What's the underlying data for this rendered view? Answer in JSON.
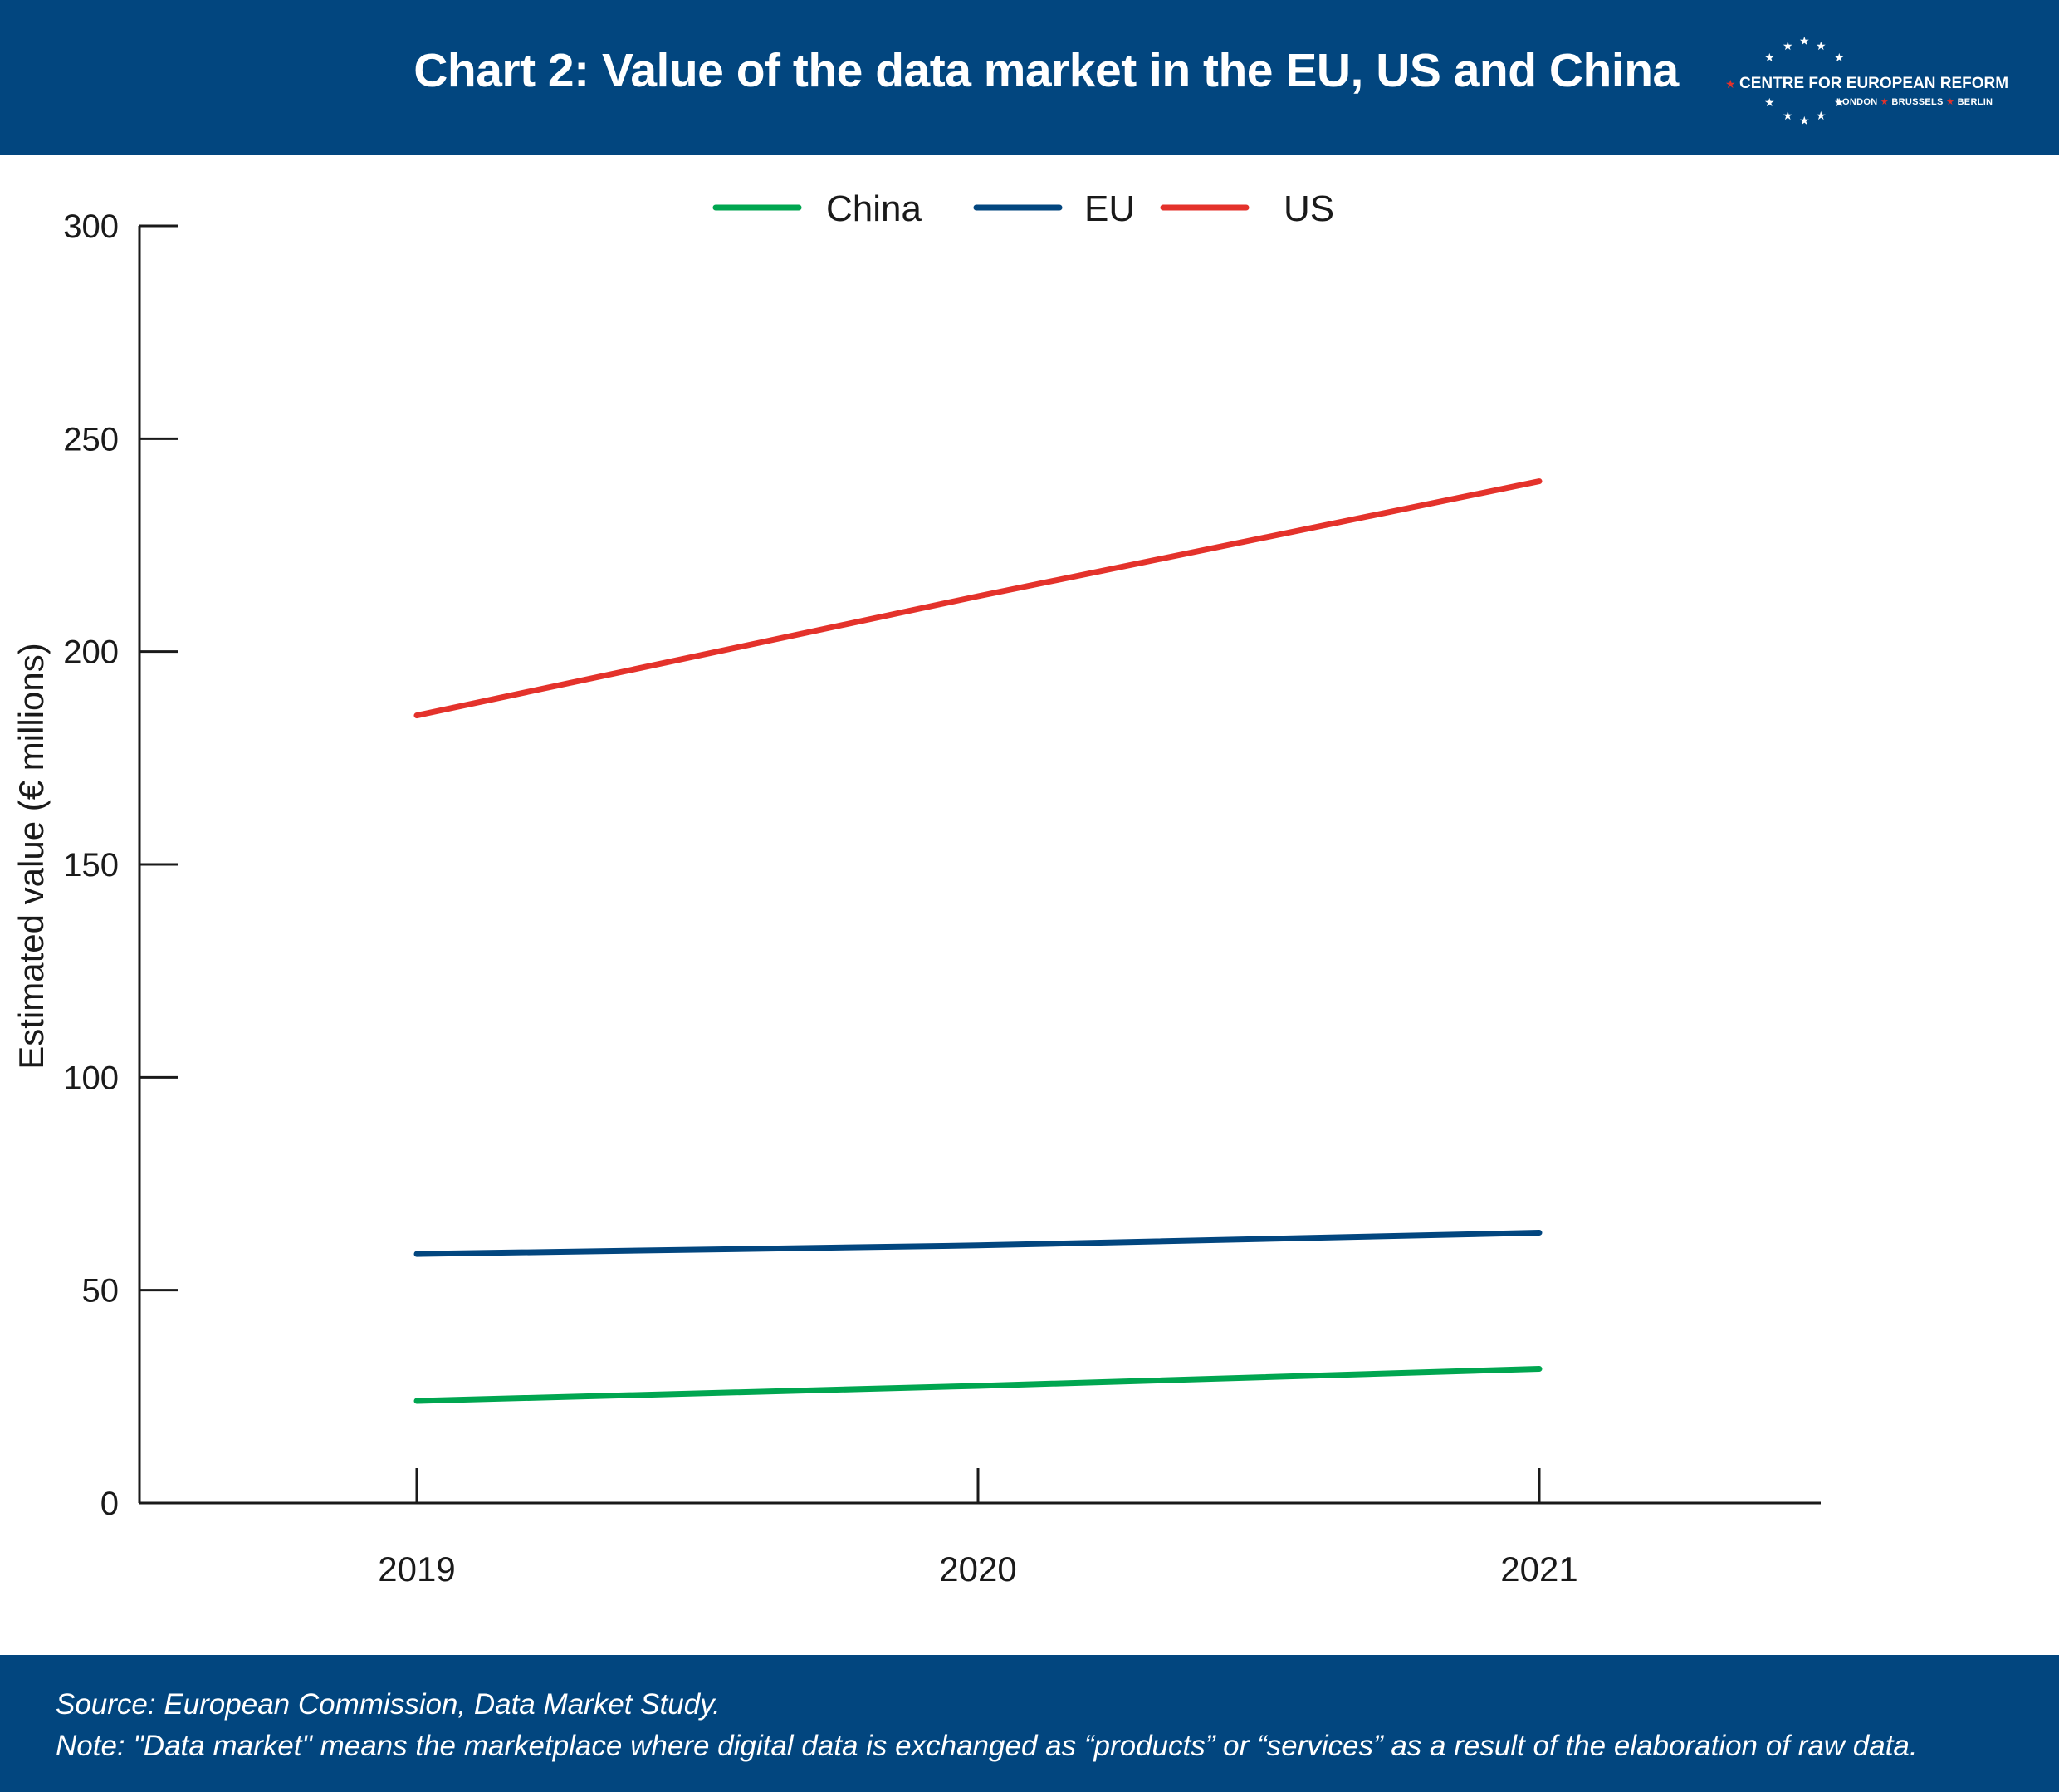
{
  "header": {
    "title": "Chart 2: Value of the data market in the EU, US and China",
    "logo": {
      "name": "CENTRE FOR EUROPEAN REFORM",
      "cities": [
        "LONDON",
        "BRUSSELS",
        "BERLIN"
      ],
      "icon": "eu-star-circle-logo"
    }
  },
  "chart_data": {
    "type": "line",
    "title": "Chart 2: Value of the data market in the EU, US and China",
    "x": [
      "2019",
      "2020",
      "2021"
    ],
    "xlabel": "",
    "ylabel": "Estimated value (€ millions)",
    "ylim": [
      0,
      300
    ],
    "yticks": [
      0,
      50,
      100,
      150,
      200,
      250,
      300
    ],
    "grid": false,
    "legend": "top-center",
    "series": [
      {
        "name": "China",
        "color": "#00a650",
        "values": [
          24,
          27.5,
          31.5
        ]
      },
      {
        "name": "EU",
        "color": "#02467f",
        "values": [
          58.5,
          60.5,
          63.5
        ]
      },
      {
        "name": "US",
        "color": "#e4322b",
        "values": [
          185,
          213,
          240
        ]
      }
    ]
  },
  "footer": {
    "source": "Source: European Commission, Data Market Study.",
    "note": "Note: \"Data market\" means the marketplace where digital data is exchanged as “products” or “services” as a result of the elaboration of raw data."
  }
}
